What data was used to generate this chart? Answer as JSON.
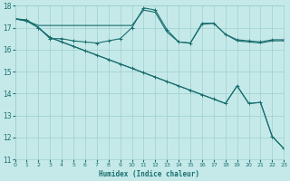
{
  "xlabel": "Humidex (Indice chaleur)",
  "bg_color": "#c5e9e9",
  "grid_color": "#9ecece",
  "line_color": "#1a6e6e",
  "xlim": [
    0,
    23
  ],
  "ylim": [
    11,
    18
  ],
  "yticks": [
    11,
    12,
    13,
    14,
    15,
    16,
    17,
    18
  ],
  "xticks": [
    0,
    1,
    2,
    3,
    4,
    5,
    6,
    7,
    8,
    9,
    10,
    11,
    12,
    13,
    14,
    15,
    16,
    17,
    18,
    19,
    20,
    21,
    22,
    23
  ],
  "series": [
    {
      "x": [
        0,
        1,
        2,
        3,
        4,
        5,
        6,
        7,
        8,
        9,
        10,
        11,
        12,
        13,
        14,
        15,
        16,
        17,
        18,
        19,
        20,
        21,
        22,
        23
      ],
      "y": [
        17.4,
        17.3,
        17.0,
        16.5,
        16.5,
        16.4,
        16.35,
        16.3,
        16.4,
        16.5,
        17.0,
        17.9,
        17.8,
        16.9,
        16.35,
        16.3,
        17.2,
        17.2,
        16.7,
        16.45,
        16.4,
        16.35,
        16.45,
        16.45
      ],
      "marker": true
    },
    {
      "x": [
        0,
        1,
        2,
        3,
        4,
        5,
        6,
        7,
        8,
        9,
        10,
        11,
        12,
        13,
        14,
        15,
        16,
        17,
        18,
        19,
        20,
        21,
        22,
        23
      ],
      "y": [
        17.4,
        17.3,
        17.1,
        17.1,
        17.1,
        17.1,
        17.1,
        17.1,
        17.1,
        17.1,
        17.1,
        17.8,
        17.7,
        16.8,
        16.35,
        16.3,
        17.15,
        17.2,
        16.7,
        16.4,
        16.35,
        16.3,
        16.4,
        16.4
      ],
      "marker": false
    },
    {
      "x": [
        0,
        1,
        2,
        3,
        4,
        5,
        6,
        7,
        8,
        9,
        10,
        11,
        12,
        13,
        14,
        15,
        16,
        17,
        18,
        19,
        20,
        21,
        22,
        23
      ],
      "y": [
        17.4,
        17.35,
        17.0,
        16.55,
        16.35,
        16.15,
        15.95,
        15.75,
        15.55,
        15.35,
        15.15,
        14.95,
        14.75,
        14.55,
        14.35,
        14.15,
        13.95,
        13.75,
        13.55,
        14.35,
        13.55,
        13.6,
        12.05,
        11.5
      ],
      "marker": true
    },
    {
      "x": [
        0,
        1,
        2,
        3,
        4,
        5,
        6,
        7,
        8,
        9,
        10,
        11,
        12,
        13,
        14,
        15,
        16,
        17,
        18,
        19,
        20,
        21,
        22,
        23
      ],
      "y": [
        17.4,
        17.35,
        17.0,
        16.55,
        16.35,
        16.15,
        15.95,
        15.75,
        15.55,
        15.35,
        15.15,
        14.95,
        14.75,
        14.55,
        14.35,
        14.15,
        13.95,
        13.75,
        13.55,
        14.35,
        13.55,
        13.6,
        12.05,
        11.5
      ],
      "marker": false
    }
  ]
}
